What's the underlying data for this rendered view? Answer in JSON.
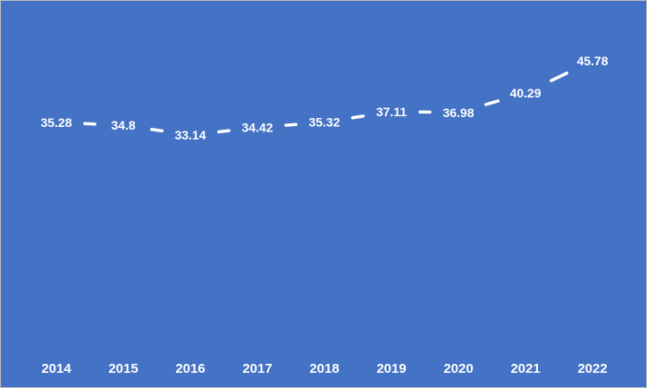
{
  "chart_data": {
    "type": "line",
    "categories": [
      "2014",
      "2015",
      "2016",
      "2017",
      "2018",
      "2019",
      "2020",
      "2021",
      "2022"
    ],
    "values": [
      35.28,
      34.8,
      33.14,
      34.42,
      35.32,
      37.11,
      36.98,
      40.29,
      45.78
    ],
    "data_labels": [
      "35.28",
      "34.8",
      "33.14",
      "34.42",
      "35.32",
      "37.11",
      "36.98",
      "40.29",
      "45.78"
    ],
    "ylim": [
      0,
      50
    ],
    "grid": false,
    "drop_lines": true,
    "colors": {
      "background": "#4472c4",
      "line": "#ffffff",
      "labels": "#ffffff"
    }
  }
}
